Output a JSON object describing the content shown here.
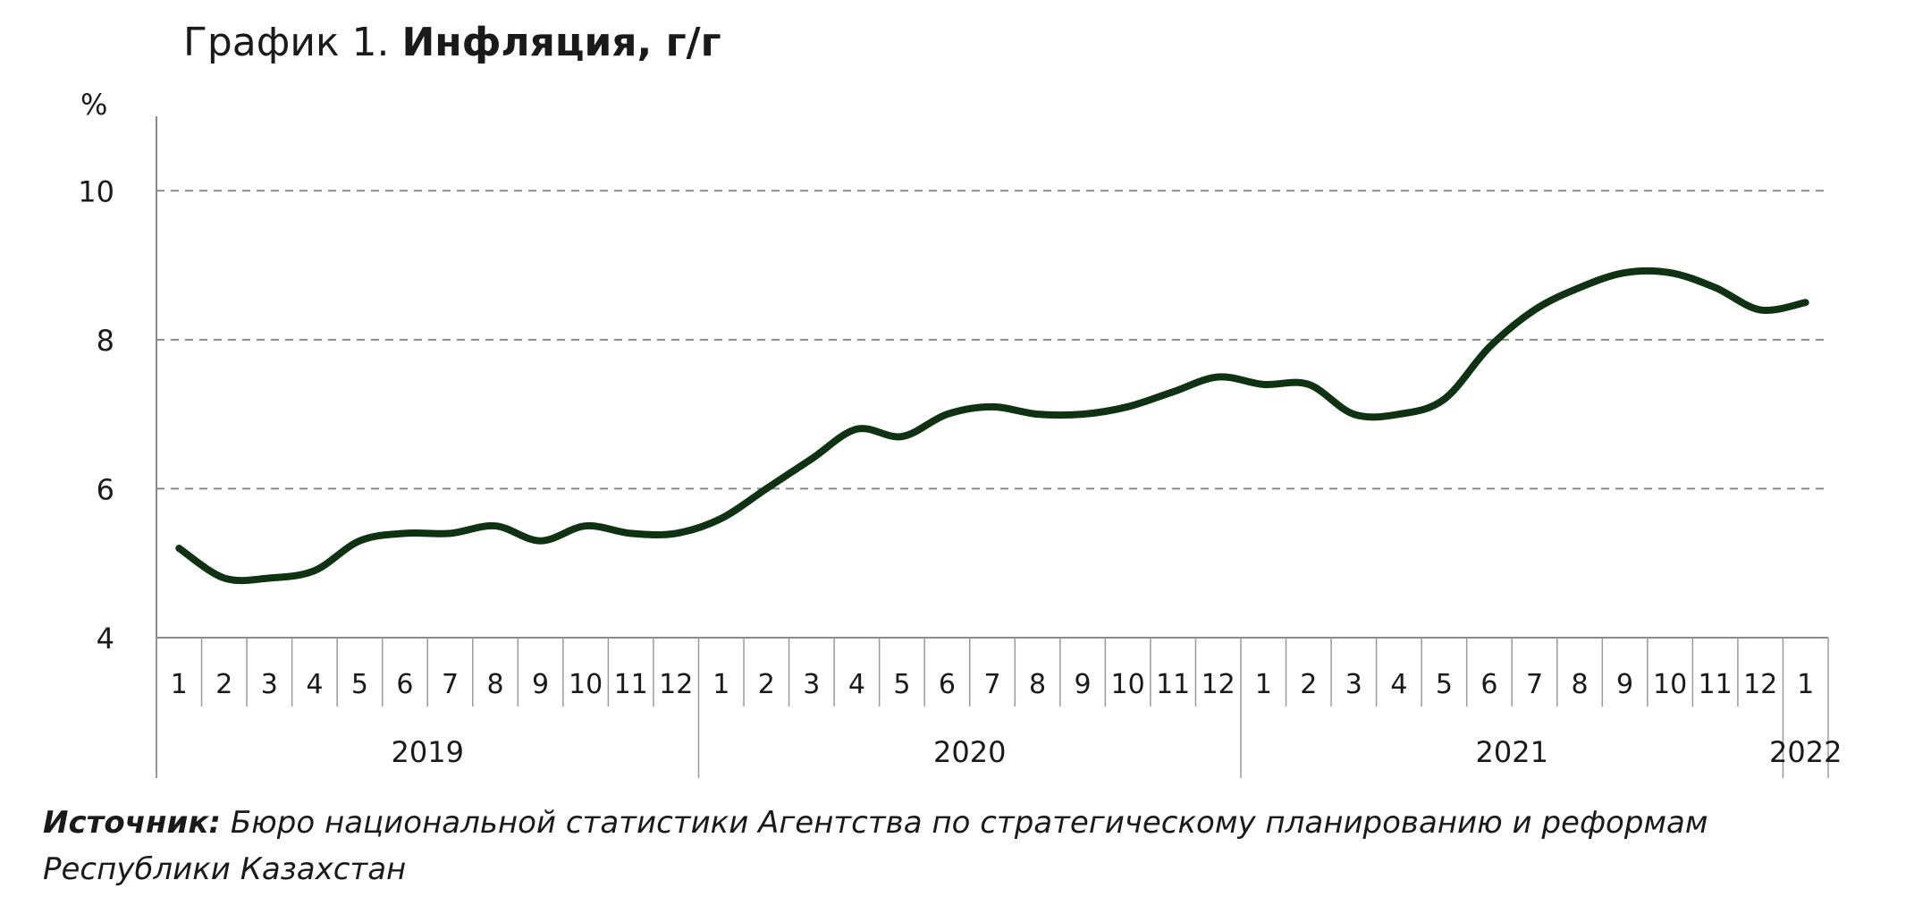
{
  "chart_data": {
    "type": "line",
    "title_prefix": "График 1.",
    "title_main": "Инфляция, г/г",
    "ylabel": "%",
    "ylim": [
      4,
      10
    ],
    "yticks": [
      4,
      6,
      8,
      10
    ],
    "grid": "dashed horizontal",
    "x": [
      "2019-1",
      "2019-2",
      "2019-3",
      "2019-4",
      "2019-5",
      "2019-6",
      "2019-7",
      "2019-8",
      "2019-9",
      "2019-10",
      "2019-11",
      "2019-12",
      "2020-1",
      "2020-2",
      "2020-3",
      "2020-4",
      "2020-5",
      "2020-6",
      "2020-7",
      "2020-8",
      "2020-9",
      "2020-10",
      "2020-11",
      "2020-12",
      "2021-1",
      "2021-2",
      "2021-3",
      "2021-4",
      "2021-5",
      "2021-6",
      "2021-7",
      "2021-8",
      "2021-9",
      "2021-10",
      "2021-11",
      "2021-12",
      "2022-1"
    ],
    "month_labels": [
      "1",
      "2",
      "3",
      "4",
      "5",
      "6",
      "7",
      "8",
      "9",
      "10",
      "11",
      "12",
      "1",
      "2",
      "3",
      "4",
      "5",
      "6",
      "7",
      "8",
      "9",
      "10",
      "11",
      "12",
      "1",
      "2",
      "3",
      "4",
      "5",
      "6",
      "7",
      "8",
      "9",
      "10",
      "11",
      "12",
      "1"
    ],
    "year_groups": [
      {
        "label": "2019",
        "months": 12
      },
      {
        "label": "2020",
        "months": 12
      },
      {
        "label": "2021",
        "months": 12
      },
      {
        "label": "2022",
        "months": 1
      }
    ],
    "series": [
      {
        "values": [
          5.2,
          4.8,
          4.8,
          4.9,
          5.3,
          5.4,
          5.4,
          5.5,
          5.3,
          5.5,
          5.4,
          5.4,
          5.6,
          6.0,
          6.4,
          6.8,
          6.7,
          7.0,
          7.1,
          7.0,
          7.0,
          7.1,
          7.3,
          7.5,
          7.4,
          7.4,
          7.0,
          7.0,
          7.2,
          7.9,
          8.4,
          8.7,
          8.9,
          8.9,
          8.7,
          8.4,
          8.5
        ],
        "color": "#0f3312"
      }
    ]
  },
  "source": {
    "label": "Источник:",
    "text": " Бюро национальной статистики Агентства по стратегическому планированию и реформам Республики Казахстан"
  }
}
